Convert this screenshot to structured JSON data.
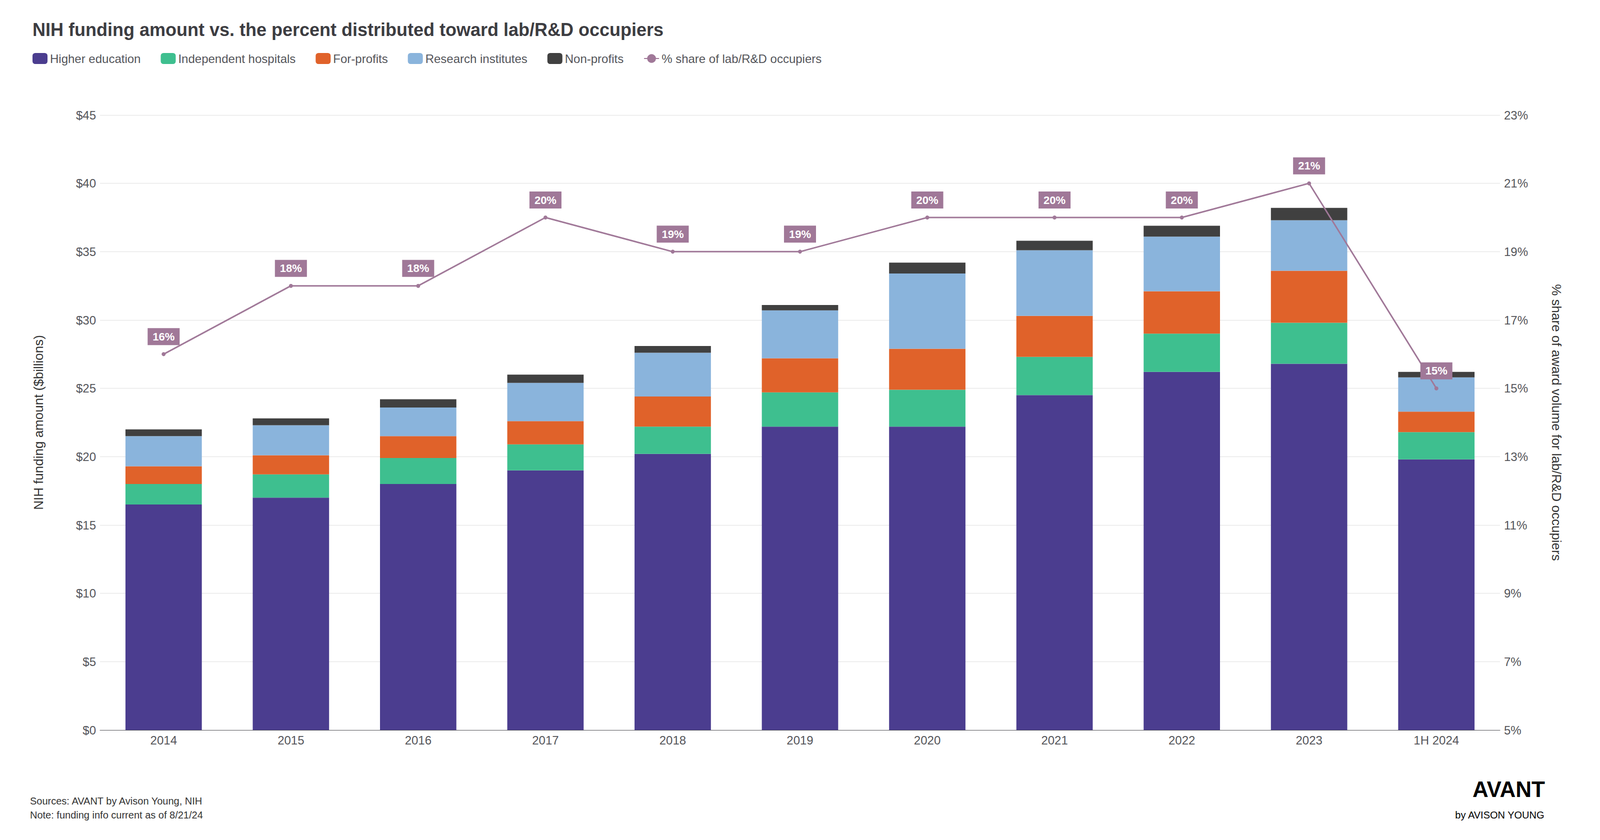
{
  "chart_data": {
    "type": "bar",
    "title": "NIH funding amount vs. the percent distributed toward lab/R&D occupiers",
    "ylabel": "NIH funding amount ($billions)",
    "y2label": "% share of award volume for lab/R&D occupiers",
    "categories": [
      "2014",
      "2015",
      "2016",
      "2017",
      "2018",
      "2019",
      "2020",
      "2021",
      "2022",
      "2023",
      "1H 2024"
    ],
    "series": [
      {
        "name": "Higher education",
        "color": "#4B3D8F",
        "values": [
          16.5,
          17.0,
          18.0,
          19.0,
          20.2,
          22.2,
          22.2,
          24.5,
          26.2,
          26.8,
          19.8
        ]
      },
      {
        "name": "Independent hospitals",
        "color": "#3EBF8F",
        "values": [
          1.5,
          1.7,
          1.9,
          1.9,
          2.0,
          2.5,
          2.7,
          2.8,
          2.8,
          3.0,
          2.0
        ]
      },
      {
        "name": "For-profits",
        "color": "#E0622A",
        "values": [
          1.3,
          1.4,
          1.6,
          1.7,
          2.2,
          2.5,
          3.0,
          3.0,
          3.1,
          3.8,
          1.5
        ]
      },
      {
        "name": "Research institutes",
        "color": "#8AB4DC",
        "values": [
          2.2,
          2.2,
          2.1,
          2.8,
          3.2,
          3.5,
          5.5,
          4.8,
          4.0,
          3.7,
          2.5
        ]
      },
      {
        "name": "Non-profits",
        "color": "#404040",
        "values": [
          0.5,
          0.5,
          0.6,
          0.6,
          0.5,
          0.4,
          0.8,
          0.7,
          0.8,
          0.9,
          0.4
        ]
      },
      {
        "name": "% share of lab/R&D occupiers",
        "type": "line",
        "axis": "y2",
        "color": "#A07898",
        "values": [
          16,
          18,
          18,
          20,
          19,
          19,
          20,
          20,
          20,
          21,
          15
        ],
        "value_labels": [
          "16%",
          "18%",
          "18%",
          "20%",
          "19%",
          "19%",
          "20%",
          "20%",
          "20%",
          "21%",
          "15%"
        ],
        "data_labels": true
      }
    ],
    "stacked": true,
    "ylim": [
      0,
      45
    ],
    "yticks": [
      {
        "value": 0,
        "label": "$0"
      },
      {
        "value": 5,
        "label": "$5"
      },
      {
        "value": 10,
        "label": "$10"
      },
      {
        "value": 15,
        "label": "$15"
      },
      {
        "value": 20,
        "label": "$20"
      },
      {
        "value": 25,
        "label": "$25"
      },
      {
        "value": 30,
        "label": "$30"
      },
      {
        "value": 35,
        "label": "$35"
      },
      {
        "value": 40,
        "label": "$40"
      },
      {
        "value": 45,
        "label": "$45"
      }
    ],
    "y2lim": [
      5,
      23
    ],
    "y2ticks": [
      {
        "value": 5,
        "label": "5%"
      },
      {
        "value": 7,
        "label": "7%"
      },
      {
        "value": 9,
        "label": "9%"
      },
      {
        "value": 11,
        "label": "11%"
      },
      {
        "value": 13,
        "label": "13%"
      },
      {
        "value": 15,
        "label": "15%"
      },
      {
        "value": 17,
        "label": "17%"
      },
      {
        "value": 19,
        "label": "19%"
      },
      {
        "value": 21,
        "label": "21%"
      },
      {
        "value": 23,
        "label": "23%"
      }
    ],
    "grid": true,
    "legend": "upper left",
    "annotations": [
      "Sources: AVANT by Avison Young, NIH\nNote: funding info current as of 8/21/24",
      "AVANT",
      "by AVISON YOUNG"
    ]
  }
}
